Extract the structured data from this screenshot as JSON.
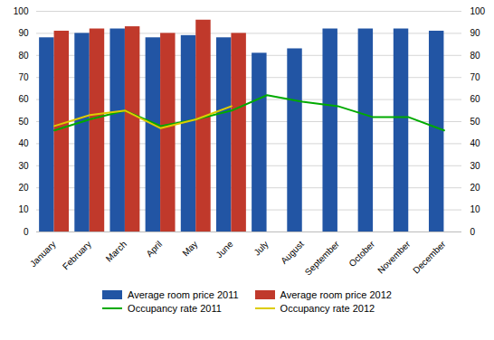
{
  "chart_data": {
    "type": "bar",
    "categories": [
      "January",
      "February",
      "March",
      "April",
      "May",
      "June",
      "July",
      "August",
      "September",
      "October",
      "November",
      "December"
    ],
    "series": [
      {
        "name": "Average room price 2011",
        "type": "bar",
        "color": "#2255a4",
        "values": [
          88,
          90,
          92,
          88,
          89,
          88,
          81,
          83,
          92,
          92,
          92,
          91
        ]
      },
      {
        "name": "Average room price 2012",
        "type": "bar",
        "color": "#c0392b",
        "values": [
          91,
          92,
          93,
          90,
          96,
          90,
          null,
          null,
          null,
          null,
          null,
          null
        ]
      },
      {
        "name": "Occupancy rate 2011",
        "type": "line",
        "color": "#00aa00",
        "axis": "y2",
        "values": [
          46,
          51,
          55,
          48,
          51,
          55,
          62,
          59,
          57,
          52,
          52,
          46
        ]
      },
      {
        "name": "Occupancy rate 2012",
        "type": "line",
        "color": "#ddcc00",
        "axis": "y2",
        "values": [
          48,
          53,
          55,
          47,
          51,
          57,
          null,
          null,
          null,
          null,
          null,
          null
        ]
      }
    ],
    "ylim": [
      0,
      100
    ],
    "yticks": [
      0,
      10,
      20,
      30,
      40,
      50,
      60,
      70,
      80,
      90,
      100
    ],
    "y2lim": [
      0,
      100
    ],
    "y2ticks": [
      0,
      10,
      20,
      30,
      40,
      50,
      60,
      70,
      80,
      90,
      100
    ],
    "grid": true,
    "legend": "bottom"
  }
}
